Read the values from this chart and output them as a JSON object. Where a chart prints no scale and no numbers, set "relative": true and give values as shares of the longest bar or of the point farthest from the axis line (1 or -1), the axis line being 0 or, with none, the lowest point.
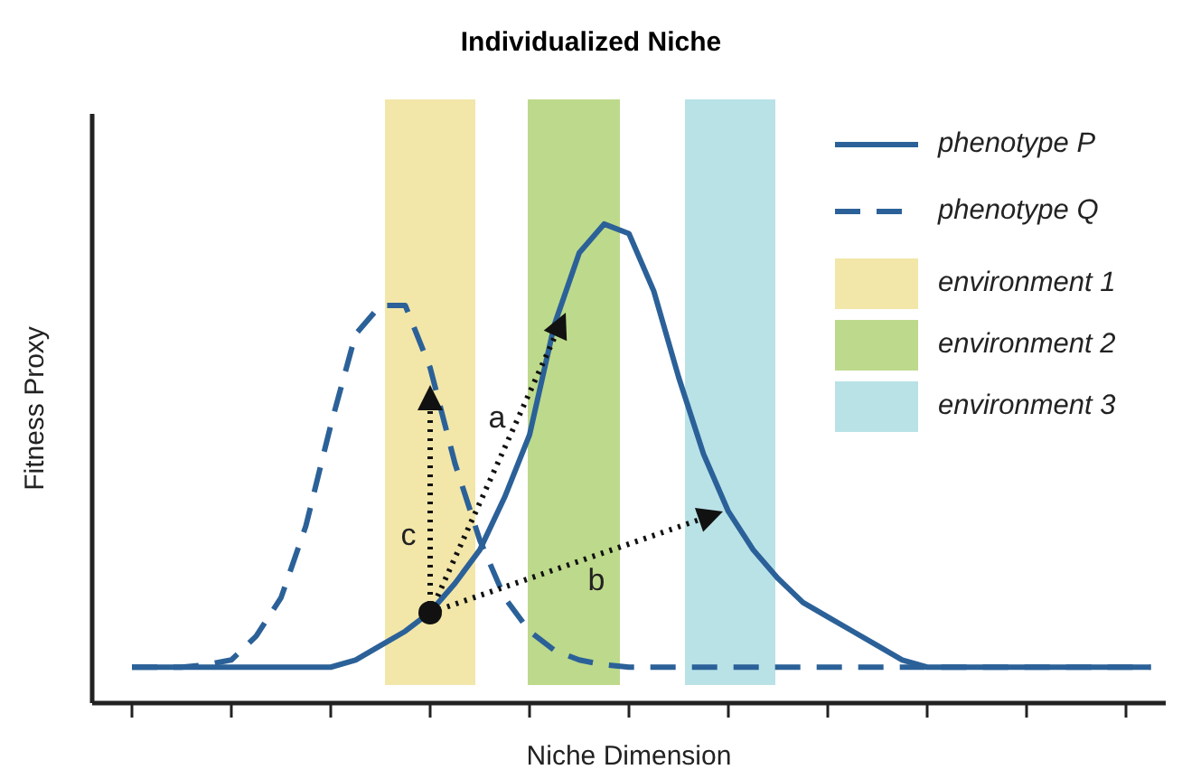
{
  "chart_data": {
    "type": "line",
    "title": "Individualized Niche",
    "xlabel": "Niche Dimension",
    "ylabel": "Fitness Proxy",
    "relative": true,
    "legend": "top right",
    "categories": [
      null,
      null,
      null,
      null,
      null,
      null,
      null,
      null,
      null,
      null,
      null,
      null,
      null,
      null,
      null,
      null,
      null,
      null,
      null,
      null,
      null,
      null,
      null,
      null,
      null,
      null,
      null,
      null,
      null,
      null,
      null,
      null,
      null,
      null,
      null,
      null,
      null,
      null,
      null,
      null,
      null,
      null
    ],
    "series": [
      {
        "name": "phenotype P",
        "line_style": "solid",
        "color": "#2b6198",
        "values": [
          0.075,
          0.075,
          0.075,
          0.075,
          0.075,
          0.075,
          0.075,
          0.075,
          0.075,
          0.09,
          0.12,
          0.15,
          0.19,
          0.25,
          0.32,
          0.43,
          0.56,
          0.79,
          0.94,
          1,
          0.98,
          0.86,
          0.68,
          0.52,
          0.4,
          0.32,
          0.26,
          0.21,
          0.18,
          0.15,
          0.12,
          0.09,
          0.075,
          0.075,
          0.075,
          0.075,
          0.075,
          0.075,
          0.075,
          0.075,
          0.075,
          0.075
        ]
      },
      {
        "name": "phenotype Q",
        "line_style": "dashed",
        "color": "#2b6198",
        "values": [
          0.075,
          0.075,
          0.075,
          0.08,
          0.09,
          0.14,
          0.22,
          0.37,
          0.58,
          0.77,
          0.83,
          0.83,
          0.7,
          0.5,
          0.34,
          0.22,
          0.15,
          0.11,
          0.09,
          0.08,
          0.075,
          0.075,
          0.075,
          0.075,
          0.075,
          0.075,
          0.075,
          0.075,
          0.075,
          0.075,
          0.075,
          0.075,
          0.075,
          0.075,
          0.075,
          0.075,
          0.075,
          0.075,
          0.075,
          0.075,
          0.075,
          0.075
        ]
      }
    ],
    "annotations": [
      "a",
      "b",
      "c",
      "environment 1",
      "environment 2",
      "environment 3"
    ]
  }
}
